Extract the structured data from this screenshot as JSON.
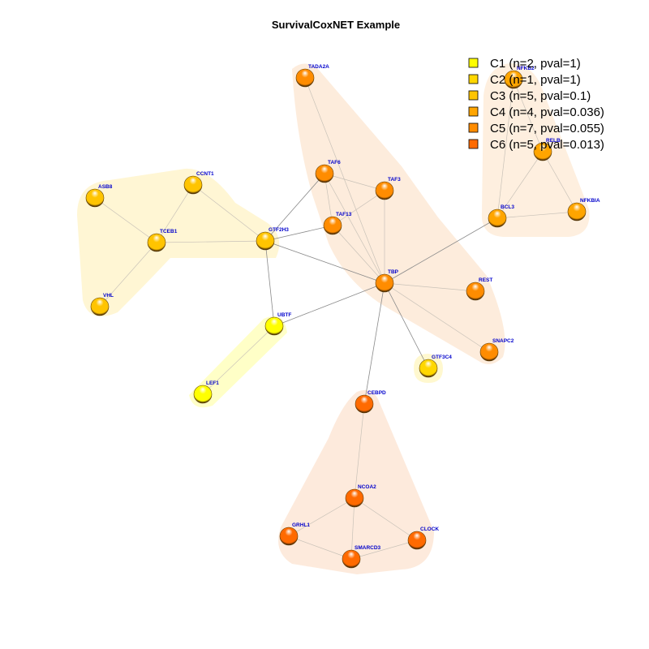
{
  "title": "SurvivalCoxNET Example",
  "label_color": "#0000cc",
  "edge_color": "#8a8a8a",
  "clusters": [
    {
      "id": "C1",
      "label": "C1 (n=2, pval=1)",
      "color": "#ffff00",
      "fill": "#ffff99"
    },
    {
      "id": "C2",
      "label": "C2 (n=1, pval=1)",
      "color": "#ffd700",
      "fill": "#fff2a8"
    },
    {
      "id": "C3",
      "label": "C3 (n=5, pval=0.1)",
      "color": "#ffc400",
      "fill": "#ffeeb0"
    },
    {
      "id": "C4",
      "label": "C4 (n=4, pval=0.036)",
      "color": "#ffa500",
      "fill": "#fde2c4"
    },
    {
      "id": "C5",
      "label": "C5 (n=7, pval=0.055)",
      "color": "#ff8c00",
      "fill": "#fcdcc0"
    },
    {
      "id": "C6",
      "label": "C6 (n=5, pval=0.013)",
      "color": "#ff6a00",
      "fill": "#fcd8c0"
    }
  ],
  "nodes": [
    {
      "id": "LEF1",
      "cluster": "C1"
    },
    {
      "id": "UBTF",
      "cluster": "C1"
    },
    {
      "id": "GTF3C4",
      "cluster": "C2"
    },
    {
      "id": "ASB8",
      "cluster": "C3"
    },
    {
      "id": "CCNT1",
      "cluster": "C3"
    },
    {
      "id": "TCEB1",
      "cluster": "C3"
    },
    {
      "id": "GTF2H3",
      "cluster": "C3"
    },
    {
      "id": "VHL",
      "cluster": "C3"
    },
    {
      "id": "NFKB2",
      "cluster": "C4"
    },
    {
      "id": "RELB",
      "cluster": "C4"
    },
    {
      "id": "BCL3",
      "cluster": "C4"
    },
    {
      "id": "NFKBIA",
      "cluster": "C4"
    },
    {
      "id": "TADA2A",
      "cluster": "C5"
    },
    {
      "id": "TAF6",
      "cluster": "C5"
    },
    {
      "id": "TAF3",
      "cluster": "C5"
    },
    {
      "id": "TAF13",
      "cluster": "C5"
    },
    {
      "id": "TBP",
      "cluster": "C5"
    },
    {
      "id": "REST",
      "cluster": "C5"
    },
    {
      "id": "SNAPC2",
      "cluster": "C5"
    },
    {
      "id": "CEBPD",
      "cluster": "C6"
    },
    {
      "id": "NCOA2",
      "cluster": "C6"
    },
    {
      "id": "GRHL1",
      "cluster": "C6"
    },
    {
      "id": "SMARCD3",
      "cluster": "C6"
    },
    {
      "id": "CLOCK",
      "cluster": "C6"
    }
  ],
  "edges": [
    [
      "ASB8",
      "TCEB1"
    ],
    [
      "CCNT1",
      "TCEB1"
    ],
    [
      "CCNT1",
      "GTF2H3"
    ],
    [
      "TCEB1",
      "GTF2H3"
    ],
    [
      "TCEB1",
      "VHL"
    ],
    [
      "GTF2H3",
      "TAF6"
    ],
    [
      "GTF2H3",
      "TAF13"
    ],
    [
      "GTF2H3",
      "TBP"
    ],
    [
      "GTF2H3",
      "UBTF"
    ],
    [
      "TADA2A",
      "TBP"
    ],
    [
      "TAF6",
      "TAF3"
    ],
    [
      "TAF6",
      "TAF13"
    ],
    [
      "TAF6",
      "TBP"
    ],
    [
      "TAF3",
      "TAF13"
    ],
    [
      "TAF3",
      "TBP"
    ],
    [
      "TAF13",
      "TBP"
    ],
    [
      "TBP",
      "REST"
    ],
    [
      "TBP",
      "SNAPC2"
    ],
    [
      "TBP",
      "BCL3"
    ],
    [
      "TBP",
      "UBTF"
    ],
    [
      "TBP",
      "GTF3C4"
    ],
    [
      "TBP",
      "CEBPD"
    ],
    [
      "UBTF",
      "LEF1"
    ],
    [
      "NFKB2",
      "RELB"
    ],
    [
      "NFKB2",
      "BCL3"
    ],
    [
      "RELB",
      "BCL3"
    ],
    [
      "RELB",
      "NFKBIA"
    ],
    [
      "BCL3",
      "NFKBIA"
    ],
    [
      "CEBPD",
      "NCOA2"
    ],
    [
      "NCOA2",
      "GRHL1"
    ],
    [
      "NCOA2",
      "SMARCD3"
    ],
    [
      "NCOA2",
      "CLOCK"
    ],
    [
      "GRHL1",
      "SMARCD3"
    ],
    [
      "SMARCD3",
      "CLOCK"
    ]
  ]
}
